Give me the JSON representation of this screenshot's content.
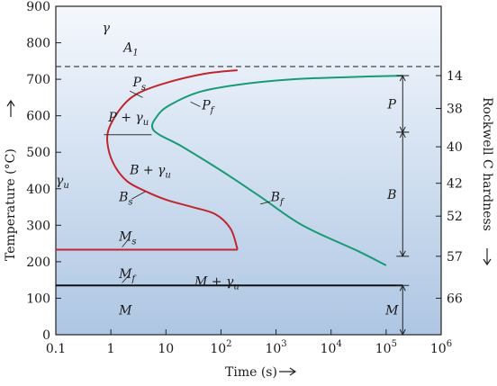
{
  "chart_data": {
    "type": "line",
    "title": "",
    "xlabel": "Time (s)",
    "ylabel": "Temperature (°C)",
    "y2label": "Rockwell C hardness",
    "x_scale": "log",
    "xlim": [
      0.1,
      1000000
    ],
    "ylim": [
      0,
      900
    ],
    "x_ticks": [
      {
        "value": 0.1,
        "label": "0.1"
      },
      {
        "value": 1,
        "label": "1"
      },
      {
        "value": 10,
        "label": "10"
      },
      {
        "value": 100,
        "label": "10",
        "exp": "2"
      },
      {
        "value": 1000,
        "label": "10",
        "exp": "3"
      },
      {
        "value": 10000,
        "label": "10",
        "exp": "4"
      },
      {
        "value": 100000,
        "label": "10",
        "exp": "5"
      },
      {
        "value": 1000000,
        "label": "10",
        "exp": "6"
      }
    ],
    "y_ticks": [
      0,
      100,
      200,
      300,
      400,
      500,
      600,
      700,
      800,
      900
    ],
    "hardness_ticks": [
      {
        "label": "14",
        "temp": 710
      },
      {
        "label": "38",
        "temp": 620
      },
      {
        "label": "40",
        "temp": 515
      },
      {
        "label": "42",
        "temp": 415
      },
      {
        "label": "52",
        "temp": 325
      },
      {
        "label": "57",
        "temp": 215
      },
      {
        "label": "66",
        "temp": 100
      }
    ],
    "series": [
      {
        "key": "start",
        "color": "#c0272d",
        "points": [
          [
            200,
            725
          ],
          [
            50,
            715
          ],
          [
            10,
            690
          ],
          [
            3,
            660
          ],
          [
            1.5,
            620
          ],
          [
            0.9,
            560
          ],
          [
            0.9,
            510
          ],
          [
            1.2,
            460
          ],
          [
            2,
            420
          ],
          [
            4,
            395
          ],
          [
            10,
            370
          ],
          [
            30,
            350
          ],
          [
            80,
            330
          ],
          [
            150,
            290
          ],
          [
            200,
            233
          ]
        ]
      },
      {
        "key": "ms",
        "color": "#c0272d",
        "points": [
          [
            0.1,
            233
          ],
          [
            200,
            233
          ]
        ]
      },
      {
        "key": "finish",
        "color": "#1a9a74",
        "points": [
          [
            100000,
            190
          ],
          [
            30000,
            230
          ],
          [
            3000,
            300
          ],
          [
            500,
            380
          ],
          [
            100,
            450
          ],
          [
            20,
            515
          ],
          [
            6,
            560
          ],
          [
            7,
            600
          ],
          [
            12,
            630
          ],
          [
            40,
            665
          ],
          [
            200,
            685
          ],
          [
            2000,
            700
          ],
          [
            20000,
            706
          ],
          [
            200000,
            710
          ]
        ]
      },
      {
        "key": "mf",
        "color": "#111111",
        "points": [
          [
            0.1,
            135
          ],
          [
            200000,
            135
          ]
        ]
      }
    ],
    "a1_line": {
      "label": "A",
      "sub": "1",
      "value": 735
    },
    "pearlite_bar": {
      "x": 1.3,
      "y1": 555,
      "y2": 525,
      "label": ""
    },
    "annotations": [
      {
        "text": "γ",
        "sub": "",
        "x": 0.7,
        "y": 830
      },
      {
        "text": "A",
        "sub": "1",
        "x": 1.7,
        "y": 775
      },
      {
        "text": "P",
        "sub": "s",
        "x": 2.5,
        "y": 680
      },
      {
        "text": "P",
        "sub": "f",
        "x": 45,
        "y": 618
      },
      {
        "text": "P + γ",
        "sub": "u",
        "x": 0.9,
        "y": 585
      },
      {
        "text": "B + γ",
        "sub": "u",
        "x": 2.2,
        "y": 440
      },
      {
        "text": "γ",
        "sub": "u",
        "x": 0.1,
        "y": 412
      },
      {
        "text": "B",
        "sub": "f",
        "x": 800,
        "y": 366
      },
      {
        "text": "B",
        "sub": "s",
        "x": 1.4,
        "y": 366
      },
      {
        "text": "M",
        "sub": "s",
        "x": 1.4,
        "y": 258
      },
      {
        "text": "M",
        "sub": "f",
        "x": 1.4,
        "y": 155
      },
      {
        "text": "M + γ",
        "sub": "u",
        "x": 33,
        "y": 135
      },
      {
        "text": "M",
        "sub": "",
        "x": 1.4,
        "y": 55
      }
    ],
    "hardness_bars": [
      {
        "label": "P",
        "top": 710,
        "bottom": 555
      },
      {
        "label": "B",
        "top": 555,
        "bottom": 215
      },
      {
        "label": "M",
        "top": 135,
        "bottom": 0
      }
    ]
  }
}
